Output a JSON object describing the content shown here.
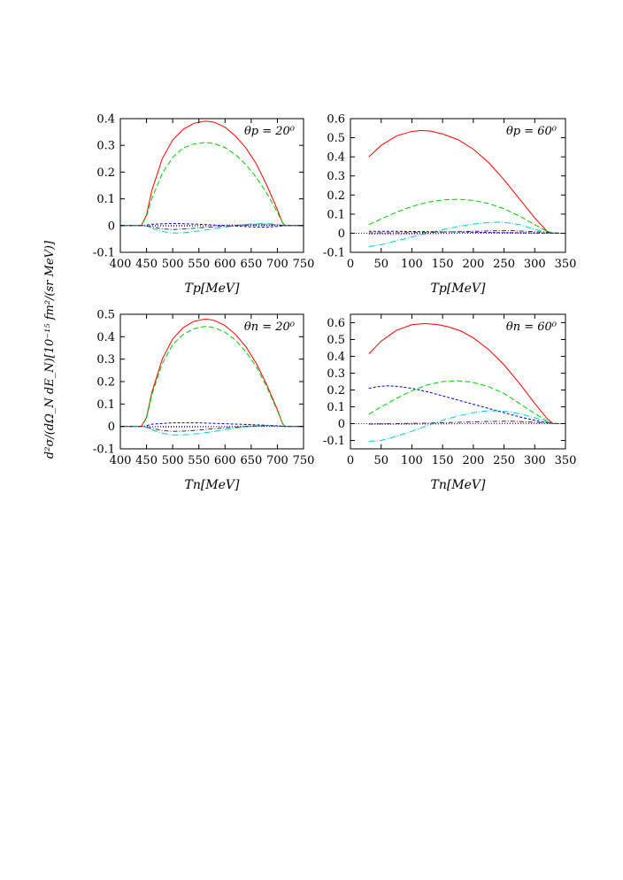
{
  "figure": {
    "ylabel": "d²σ/(dΩ_N dE_N)[10⁻¹⁵ fm²/(sr MeV)]"
  },
  "chart_data": [
    {
      "type": "line",
      "panel": "top-left",
      "annotation": "θp = 20⁰",
      "xlabel": "Tp[MeV]",
      "xlim": [
        400,
        750
      ],
      "ylim": [
        -0.1,
        0.4
      ],
      "xticks": [
        "400",
        "450",
        "500",
        "550",
        "600",
        "650",
        "700",
        "750"
      ],
      "yticks": [
        "-0.1",
        "0",
        "0.1",
        "0.2",
        "0.3",
        "0.4"
      ],
      "series": [
        {
          "name": "solid-red",
          "color": "#ff0000",
          "dash": "",
          "x": [
            400,
            440,
            450,
            460,
            480,
            500,
            520,
            540,
            560,
            567,
            580,
            600,
            620,
            640,
            660,
            680,
            700,
            710,
            715,
            750
          ],
          "y": [
            0,
            0,
            0.04,
            0.13,
            0.25,
            0.32,
            0.36,
            0.382,
            0.39,
            0.39,
            0.386,
            0.368,
            0.335,
            0.29,
            0.23,
            0.15,
            0.06,
            0.01,
            0,
            0
          ]
        },
        {
          "name": "dashed-green",
          "color": "#00cc00",
          "dash": "6,3",
          "x": [
            400,
            440,
            450,
            460,
            480,
            500,
            520,
            540,
            560,
            567,
            580,
            600,
            620,
            640,
            660,
            680,
            700,
            710,
            715,
            750
          ],
          "y": [
            0,
            0,
            0.035,
            0.1,
            0.195,
            0.255,
            0.29,
            0.305,
            0.31,
            0.31,
            0.306,
            0.292,
            0.265,
            0.228,
            0.18,
            0.12,
            0.05,
            0.01,
            0,
            0
          ]
        },
        {
          "name": "short-dashed-blue",
          "color": "#0000cc",
          "dash": "3,2",
          "x": [
            400,
            445,
            460,
            500,
            550,
            600,
            650,
            680,
            700,
            715,
            750
          ],
          "y": [
            0,
            0,
            0.005,
            0.008,
            0.005,
            0.0,
            -0.005,
            -0.006,
            -0.003,
            0,
            0
          ]
        },
        {
          "name": "dotted-magenta",
          "color": "#cc00cc",
          "dash": "1,2",
          "x": [
            400,
            445,
            460,
            500,
            550,
            600,
            650,
            700,
            715,
            750
          ],
          "y": [
            0,
            0,
            -0.002,
            -0.003,
            -0.002,
            0.002,
            0.004,
            0.002,
            0,
            0
          ]
        },
        {
          "name": "dash-dot-cyan",
          "color": "#00cccc",
          "dash": "7,2,1,2",
          "x": [
            400,
            445,
            460,
            480,
            500,
            520,
            550,
            580,
            600,
            620,
            650,
            680,
            700,
            715,
            750
          ],
          "y": [
            0,
            0,
            -0.01,
            -0.022,
            -0.028,
            -0.027,
            -0.02,
            -0.012,
            -0.006,
            0.0,
            0.006,
            0.008,
            0.004,
            0,
            0
          ]
        },
        {
          "name": "dash-dot-dark",
          "color": "#333333",
          "dash": "5,2,1,2",
          "x": [
            400,
            445,
            460,
            480,
            500,
            530,
            560,
            600,
            640,
            680,
            700,
            715,
            750
          ],
          "y": [
            0,
            0,
            -0.005,
            -0.012,
            -0.015,
            -0.012,
            -0.007,
            -0.002,
            0.002,
            0.003,
            0.002,
            0,
            0
          ]
        }
      ]
    },
    {
      "type": "line",
      "panel": "top-right",
      "annotation": "θp = 60⁰",
      "xlabel": "Tp[MeV]",
      "xlim": [
        0,
        350
      ],
      "ylim": [
        -0.1,
        0.6
      ],
      "xticks": [
        "0",
        "50",
        "100",
        "150",
        "200",
        "250",
        "300",
        "350"
      ],
      "yticks": [
        "-0.1",
        "0",
        "0.1",
        "0.2",
        "0.3",
        "0.4",
        "0.5",
        "0.6"
      ],
      "series": [
        {
          "name": "solid-red",
          "color": "#ff0000",
          "dash": "",
          "x": [
            30,
            50,
            75,
            100,
            115,
            130,
            150,
            175,
            200,
            225,
            250,
            275,
            300,
            320,
            330,
            340
          ],
          "y": [
            0.4,
            0.46,
            0.51,
            0.533,
            0.538,
            0.535,
            0.52,
            0.49,
            0.44,
            0.37,
            0.28,
            0.18,
            0.08,
            0.01,
            0.0,
            0.0
          ]
        },
        {
          "name": "dashed-green",
          "color": "#00cc00",
          "dash": "6,3",
          "x": [
            30,
            50,
            75,
            100,
            125,
            150,
            175,
            200,
            225,
            250,
            275,
            300,
            320,
            330,
            340
          ],
          "y": [
            0.045,
            0.075,
            0.11,
            0.14,
            0.162,
            0.174,
            0.178,
            0.172,
            0.155,
            0.128,
            0.09,
            0.045,
            0.01,
            0.0,
            0.0
          ]
        },
        {
          "name": "dash-dot-cyan",
          "color": "#00cccc",
          "dash": "7,2,1,2",
          "x": [
            30,
            50,
            75,
            100,
            125,
            150,
            175,
            200,
            225,
            240,
            250,
            275,
            300,
            320,
            330,
            340
          ],
          "y": [
            -0.07,
            -0.06,
            -0.04,
            -0.02,
            0.0,
            0.018,
            0.035,
            0.048,
            0.056,
            0.058,
            0.057,
            0.045,
            0.02,
            0.005,
            0.0,
            0.0
          ]
        },
        {
          "name": "short-dashed-blue",
          "color": "#0000cc",
          "dash": "3,2",
          "x": [
            30,
            75,
            125,
            175,
            225,
            275,
            320,
            340
          ],
          "y": [
            0.01,
            0.01,
            0.008,
            0.006,
            0.004,
            0.002,
            0.0,
            0.0
          ]
        },
        {
          "name": "dotted-magenta",
          "color": "#cc00cc",
          "dash": "1,2",
          "x": [
            30,
            75,
            125,
            175,
            225,
            275,
            320,
            340
          ],
          "y": [
            -0.005,
            -0.006,
            -0.004,
            -0.001,
            0.003,
            0.004,
            0.001,
            0.0
          ]
        },
        {
          "name": "dash-dot-dark",
          "color": "#333333",
          "dash": "5,2,1,2",
          "x": [
            30,
            75,
            125,
            175,
            225,
            260,
            300,
            340
          ],
          "y": [
            0.002,
            0.002,
            0.004,
            0.008,
            0.012,
            0.014,
            0.008,
            0.0
          ]
        }
      ]
    },
    {
      "type": "line",
      "panel": "bottom-left",
      "annotation": "θn = 20⁰",
      "xlabel": "Tn[MeV]",
      "xlim": [
        400,
        750
      ],
      "ylim": [
        -0.1,
        0.5
      ],
      "xticks": [
        "400",
        "450",
        "500",
        "550",
        "600",
        "650",
        "700",
        "750"
      ],
      "yticks": [
        "-0.1",
        "0",
        "0.1",
        "0.2",
        "0.3",
        "0.4",
        "0.5"
      ],
      "series": [
        {
          "name": "solid-red",
          "color": "#ff0000",
          "dash": "",
          "x": [
            400,
            440,
            450,
            460,
            480,
            500,
            520,
            540,
            560,
            567,
            580,
            600,
            620,
            640,
            660,
            680,
            700,
            710,
            715,
            750
          ],
          "y": [
            0,
            0,
            0.04,
            0.15,
            0.3,
            0.39,
            0.44,
            0.468,
            0.478,
            0.478,
            0.472,
            0.45,
            0.41,
            0.355,
            0.28,
            0.185,
            0.075,
            0.012,
            0,
            0
          ]
        },
        {
          "name": "dashed-green",
          "color": "#00cc00",
          "dash": "6,3",
          "x": [
            400,
            440,
            450,
            460,
            480,
            500,
            520,
            540,
            560,
            567,
            580,
            600,
            620,
            640,
            660,
            680,
            700,
            710,
            715,
            750
          ],
          "y": [
            0,
            0,
            0.035,
            0.14,
            0.28,
            0.365,
            0.41,
            0.435,
            0.445,
            0.445,
            0.44,
            0.42,
            0.385,
            0.333,
            0.265,
            0.175,
            0.07,
            0.012,
            0,
            0
          ]
        },
        {
          "name": "short-dashed-blue",
          "color": "#0000cc",
          "dash": "3,2",
          "x": [
            400,
            445,
            460,
            500,
            550,
            600,
            650,
            700,
            715,
            750
          ],
          "y": [
            0,
            0,
            0.01,
            0.016,
            0.016,
            0.012,
            0.008,
            0.003,
            0,
            0
          ]
        },
        {
          "name": "dotted-magenta",
          "color": "#cc00cc",
          "dash": "1,2",
          "x": [
            400,
            445,
            460,
            500,
            550,
            600,
            650,
            700,
            715,
            750
          ],
          "y": [
            0,
            0,
            -0.002,
            -0.004,
            -0.003,
            0.0,
            0.002,
            0.001,
            0,
            0
          ]
        },
        {
          "name": "dash-dot-cyan",
          "color": "#00cccc",
          "dash": "7,2,1,2",
          "x": [
            400,
            445,
            460,
            480,
            500,
            520,
            550,
            580,
            600,
            620,
            650,
            680,
            700,
            715,
            750
          ],
          "y": [
            0,
            0,
            -0.015,
            -0.03,
            -0.038,
            -0.038,
            -0.032,
            -0.022,
            -0.014,
            -0.007,
            0.0,
            0.004,
            0.002,
            0,
            0
          ]
        },
        {
          "name": "dash-dot-dark",
          "color": "#333333",
          "dash": "5,2,1,2",
          "x": [
            400,
            445,
            460,
            480,
            500,
            530,
            560,
            600,
            640,
            680,
            700,
            715,
            750
          ],
          "y": [
            0,
            0,
            -0.008,
            -0.018,
            -0.022,
            -0.02,
            -0.014,
            -0.006,
            0.0,
            0.003,
            0.002,
            0,
            0
          ]
        }
      ]
    },
    {
      "type": "line",
      "panel": "bottom-right",
      "annotation": "θn = 60⁰",
      "xlabel": "Tn[MeV]",
      "xlim": [
        0,
        350
      ],
      "ylim": [
        -0.15,
        0.65
      ],
      "xticks": [
        "0",
        "50",
        "100",
        "150",
        "200",
        "250",
        "300",
        "350"
      ],
      "yticks": [
        "-0.1",
        "0",
        "0.1",
        "0.2",
        "0.3",
        "0.4",
        "0.5",
        "0.6"
      ],
      "ytick_values": [
        -0.1,
        0,
        0.1,
        0.2,
        0.3,
        0.4,
        0.5,
        0.6
      ],
      "series": [
        {
          "name": "solid-red",
          "color": "#ff0000",
          "dash": "",
          "x": [
            30,
            50,
            75,
            100,
            120,
            140,
            160,
            180,
            200,
            225,
            250,
            275,
            300,
            320,
            330,
            340
          ],
          "y": [
            0.415,
            0.49,
            0.555,
            0.588,
            0.595,
            0.59,
            0.575,
            0.55,
            0.51,
            0.44,
            0.35,
            0.24,
            0.12,
            0.03,
            0.0,
            0.0
          ]
        },
        {
          "name": "dashed-green",
          "color": "#00cc00",
          "dash": "6,3",
          "x": [
            30,
            50,
            75,
            100,
            125,
            150,
            175,
            200,
            225,
            250,
            275,
            300,
            320,
            330,
            340
          ],
          "y": [
            0.055,
            0.1,
            0.15,
            0.195,
            0.23,
            0.25,
            0.255,
            0.245,
            0.22,
            0.18,
            0.12,
            0.06,
            0.015,
            0.0,
            0.0
          ]
        },
        {
          "name": "short-dashed-blue",
          "color": "#0000cc",
          "dash": "3,2",
          "x": [
            30,
            45,
            60,
            75,
            100,
            125,
            150,
            175,
            200,
            225,
            250,
            275,
            300,
            320,
            335,
            340
          ],
          "y": [
            0.21,
            0.22,
            0.225,
            0.222,
            0.21,
            0.19,
            0.165,
            0.14,
            0.115,
            0.09,
            0.065,
            0.04,
            0.02,
            0.005,
            0.0,
            0.0
          ]
        },
        {
          "name": "dash-dot-cyan",
          "color": "#00cccc",
          "dash": "7,2,1,2",
          "x": [
            30,
            50,
            75,
            100,
            125,
            150,
            175,
            200,
            220,
            240,
            260,
            280,
            300,
            320,
            335,
            340
          ],
          "y": [
            -0.105,
            -0.1,
            -0.075,
            -0.045,
            -0.012,
            0.02,
            0.045,
            0.065,
            0.075,
            0.076,
            0.07,
            0.055,
            0.035,
            0.01,
            0.0,
            0.0
          ]
        },
        {
          "name": "dotted-magenta",
          "color": "#cc00cc",
          "dash": "1,2",
          "x": [
            30,
            75,
            125,
            175,
            225,
            275,
            320,
            340
          ],
          "y": [
            -0.004,
            -0.005,
            -0.003,
            -0.001,
            0.002,
            0.003,
            0.001,
            0.0
          ]
        },
        {
          "name": "dash-dot-dark",
          "color": "#333333",
          "dash": "5,2,1,2",
          "x": [
            30,
            75,
            125,
            175,
            225,
            260,
            300,
            340
          ],
          "y": [
            -0.002,
            0.0,
            0.003,
            0.008,
            0.013,
            0.015,
            0.008,
            0.0
          ]
        }
      ]
    }
  ]
}
